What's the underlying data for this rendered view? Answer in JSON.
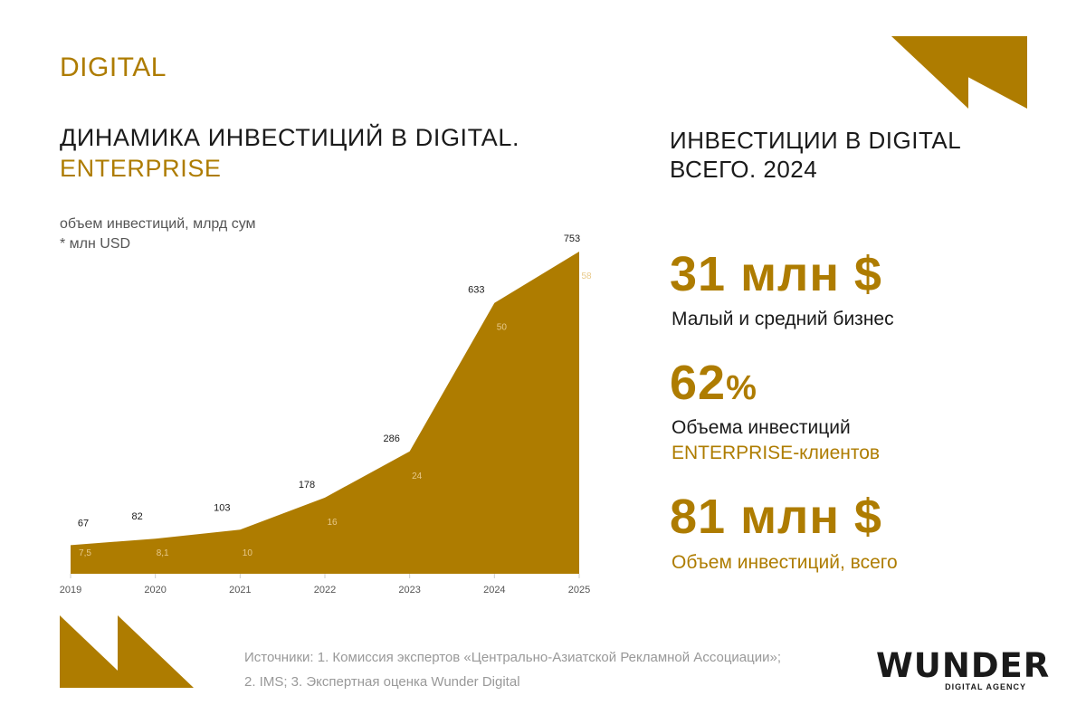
{
  "header": {
    "section_label": "DIGITAL",
    "title_line1": "ДИНАМИКА ИНВЕСТИЦИЙ В DIGITAL.",
    "title_line2": "ENTERPRISE",
    "unit_line1": "объем инвестиций, млрд сум",
    "unit_line2": "* млн USD"
  },
  "chart_data": {
    "type": "area",
    "title": "ДИНАМИКА ИНВЕСТИЦИЙ В DIGITAL. ENTERPRISE",
    "ylabel": "объем инвестиций, млрд сум",
    "categories": [
      "2019",
      "2020",
      "2021",
      "2022",
      "2023",
      "2024",
      "2025"
    ],
    "series": [
      {
        "name": "млрд сум",
        "values": [
          67,
          82,
          103,
          178,
          286,
          633,
          753
        ]
      },
      {
        "name": "млн USD",
        "values": [
          7.5,
          8.1,
          10,
          16,
          24,
          50,
          58
        ]
      }
    ],
    "value_labels": [
      "67",
      "82",
      "103",
      "178",
      "286",
      "633",
      "753"
    ],
    "usd_labels": [
      "7,5",
      "8,1",
      "10",
      "16",
      "24",
      "50",
      "58"
    ],
    "ylim": [
      0,
      753
    ],
    "grid": false,
    "fill_color": "#ae7c00"
  },
  "summary": {
    "title_line1": "ИНВЕСТИЦИИ В DIGITAL",
    "title_line2": "ВСЕГО. 2024",
    "stats": [
      {
        "value": "31 млн $",
        "label": "Малый и средний бизнес"
      },
      {
        "value": "62",
        "unit": "%",
        "label_line1": "Объема инвестиций",
        "label_line2": "ENTERPRISE-клиентов"
      },
      {
        "value": "81 млн $",
        "label": "Объем инвестиций, всего"
      }
    ]
  },
  "footer": {
    "sources_line1": "Источники: 1. Комиссия экспертов «Центрально-Азиатской Рекламной Ассоциации»;",
    "sources_line2": "2. IMS; 3. Экспертная оценка Wunder Digital",
    "logo_word": "WUNDER",
    "logo_sub": "DIGITAL AGENCY"
  },
  "colors": {
    "accent": "#ae7c00",
    "text": "#1a1a1a",
    "muted": "#999999"
  }
}
